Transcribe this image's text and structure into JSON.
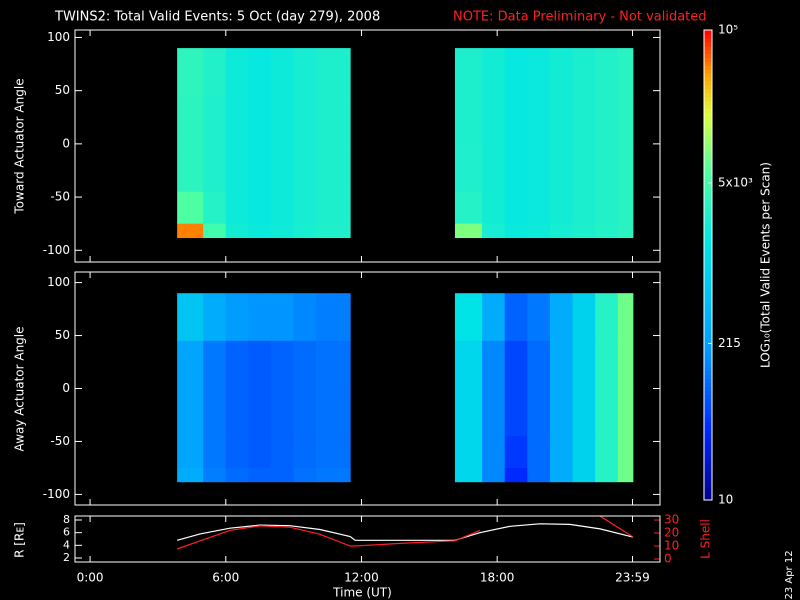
{
  "title": "TWINS2: Total Valid Events:  5 Oct (day 279), 2008",
  "note": "NOTE: Data Preliminary - Not validated",
  "date": "23 Apr 12",
  "colorbar": {
    "label": "LOG₁₀(Total Valid Events per Scan)",
    "log": true,
    "zlim": [
      10,
      100000
    ],
    "ticks": [
      {
        "value": 100000,
        "label": "10⁵"
      },
      {
        "value": 5000,
        "label": "5x10³"
      },
      215,
      10
    ],
    "colorscale": [
      [
        0,
        "#00008c"
      ],
      [
        0.15,
        "#0028ff"
      ],
      [
        0.33,
        "#00a0ff"
      ],
      [
        0.55,
        "#00e6e6"
      ],
      [
        0.7,
        "#50ffa0"
      ],
      [
        0.82,
        "#dcff3c"
      ],
      [
        0.9,
        "#ffaa00"
      ],
      [
        1,
        "#ff0000"
      ]
    ]
  },
  "chart_data": [
    {
      "type": "heatmap",
      "ylabel": "Toward Actuator Angle",
      "x_edges": [
        231,
        300,
        360,
        420,
        480,
        540,
        600,
        690,
        968,
        1040,
        1100,
        1160,
        1220,
        1280,
        1340,
        1400,
        1440
      ],
      "y_edges": [
        90,
        45,
        0,
        -45,
        -75,
        -88
      ],
      "values": [
        [
          3500,
          2800,
          2000,
          1800,
          2000,
          2300,
          2600,
          null,
          2600,
          2200,
          1800,
          1900,
          2200,
          2500,
          2800,
          3200
        ],
        [
          3400,
          2700,
          2000,
          1800,
          2000,
          2300,
          2600,
          null,
          2600,
          2200,
          1800,
          1900,
          2200,
          2500,
          2800,
          3200
        ],
        [
          3400,
          2700,
          2000,
          1800,
          2000,
          2300,
          2600,
          null,
          2700,
          2200,
          1800,
          1900,
          2200,
          2500,
          2800,
          3200
        ],
        [
          6000,
          3000,
          2000,
          1800,
          2000,
          2300,
          2600,
          null,
          3000,
          2200,
          1800,
          1900,
          2200,
          2500,
          2800,
          3200
        ],
        [
          50000,
          5000,
          2200,
          1900,
          2100,
          2400,
          2700,
          null,
          9000,
          2400,
          1900,
          2000,
          2300,
          2600,
          2900,
          3300
        ]
      ],
      "xlim": [
        -40,
        1512
      ],
      "ylim": [
        -111,
        107
      ],
      "yticks": [
        -100,
        -50,
        0,
        50,
        100
      ]
    },
    {
      "type": "heatmap",
      "ylabel": "Away Actuator Angle",
      "x_edges": [
        231,
        300,
        360,
        420,
        480,
        540,
        600,
        690,
        968,
        1040,
        1100,
        1160,
        1220,
        1280,
        1340,
        1400,
        1440
      ],
      "y_edges": [
        90,
        45,
        0,
        -45,
        -75,
        -88
      ],
      "values": [
        [
          600,
          300,
          200,
          180,
          180,
          150,
          130,
          null,
          1500,
          300,
          90,
          120,
          300,
          900,
          3000,
          8000
        ],
        [
          250,
          120,
          90,
          80,
          90,
          100,
          110,
          null,
          1000,
          150,
          60,
          100,
          300,
          900,
          3000,
          8000
        ],
        [
          250,
          120,
          90,
          80,
          90,
          100,
          110,
          null,
          1000,
          150,
          60,
          100,
          300,
          900,
          3000,
          8000
        ],
        [
          250,
          120,
          90,
          80,
          90,
          100,
          110,
          null,
          1000,
          150,
          50,
          100,
          300,
          900,
          3000,
          8000
        ],
        [
          300,
          130,
          100,
          90,
          90,
          110,
          120,
          null,
          1000,
          150,
          40,
          100,
          300,
          900,
          3000,
          8000
        ]
      ],
      "xlim": [
        -40,
        1512
      ],
      "ylim": [
        -110,
        110
      ],
      "yticks": [
        -100,
        -50,
        0,
        50,
        100
      ]
    },
    {
      "type": "line",
      "ylabel": "R [Rᴇ]",
      "y2label": "L Shell",
      "xlabel": "Time (UT)",
      "x": [
        231,
        292,
        371,
        451,
        530,
        610,
        690,
        703,
        822,
        968,
        1034,
        1114,
        1193,
        1273,
        1353,
        1440
      ],
      "series": [
        {
          "color": "#ffffff",
          "values": [
            4.8,
            5.8,
            6.7,
            7.2,
            7.1,
            6.5,
            5.4,
            4.8,
            4.8,
            4.8,
            6.0,
            7.0,
            7.4,
            7.3,
            6.6,
            5.3
          ]
        },
        {
          "color": "#ff2020",
          "axis": "y2",
          "values": [
            7.7,
            14,
            22,
            25.5,
            24.5,
            19,
            10,
            10,
            12,
            14,
            22,
            null,
            null,
            null,
            33,
            17
          ]
        }
      ],
      "xlim": [
        -40,
        1512
      ],
      "xticks": [
        {
          "value": 0,
          "label": "0:00"
        },
        {
          "value": 360,
          "label": "6:00"
        },
        {
          "value": 720,
          "label": "12:00"
        },
        {
          "value": 1080,
          "label": "18:00"
        },
        {
          "value": 1439,
          "label": "23:59"
        }
      ],
      "ylim": [
        1.37,
        8.63
      ],
      "yticks": [
        2,
        4,
        6,
        8
      ],
      "y2lim": [
        -2.3,
        33.1
      ],
      "y2ticks": [
        0,
        10,
        20,
        30
      ]
    }
  ]
}
